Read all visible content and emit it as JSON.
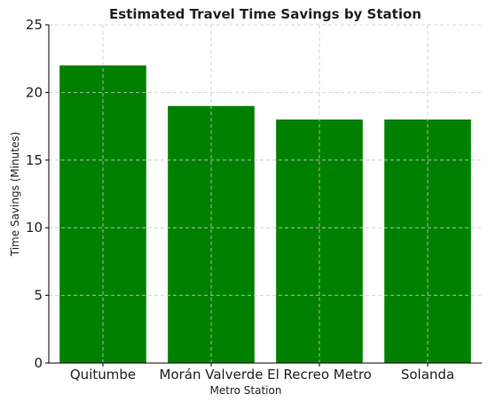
{
  "chart_data": {
    "type": "bar",
    "title": "Estimated Travel Time Savings by Station",
    "xlabel": "Metro Station",
    "ylabel": "Time Savings (Minutes)",
    "categories": [
      "Quitumbe",
      "Morán Valverde",
      "El Recreo Metro",
      "Solanda"
    ],
    "values": [
      22,
      19,
      18,
      18
    ],
    "ylim": [
      0,
      25
    ],
    "yticks": [
      0,
      5,
      10,
      15,
      20,
      25
    ],
    "bar_color": "#008000",
    "grid": true,
    "legend": "none"
  }
}
